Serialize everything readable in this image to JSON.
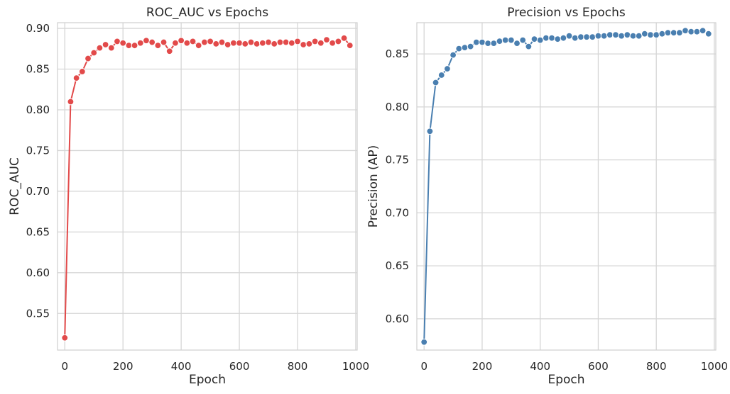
{
  "chart_data": [
    {
      "type": "line",
      "title": "ROC_AUC vs Epochs",
      "xlabel": "Epoch",
      "ylabel": "ROC_AUC",
      "xlim": [
        -25,
        1005
      ],
      "ylim": [
        0.505,
        0.907
      ],
      "xticks": [
        0,
        200,
        400,
        600,
        800,
        1000
      ],
      "xtick_labels": [
        "0",
        "200",
        "400",
        "600",
        "800",
        "1000"
      ],
      "yticks": [
        0.55,
        0.6,
        0.65,
        0.7,
        0.75,
        0.8,
        0.85,
        0.9
      ],
      "ytick_labels": [
        "0.55",
        "0.60",
        "0.65",
        "0.70",
        "0.75",
        "0.80",
        "0.85",
        "0.90"
      ],
      "grid": true,
      "marker": "circle",
      "color": "#e24a4a",
      "x": [
        0,
        20,
        40,
        60,
        80,
        100,
        120,
        140,
        160,
        180,
        200,
        220,
        240,
        260,
        280,
        300,
        320,
        340,
        360,
        380,
        400,
        420,
        440,
        460,
        480,
        500,
        520,
        540,
        560,
        580,
        600,
        620,
        640,
        660,
        680,
        700,
        720,
        740,
        760,
        780,
        800,
        820,
        840,
        860,
        880,
        900,
        920,
        940,
        960,
        980
      ],
      "y": [
        0.52,
        0.81,
        0.839,
        0.847,
        0.863,
        0.87,
        0.876,
        0.88,
        0.876,
        0.884,
        0.882,
        0.879,
        0.879,
        0.882,
        0.885,
        0.883,
        0.879,
        0.883,
        0.872,
        0.882,
        0.885,
        0.882,
        0.884,
        0.879,
        0.883,
        0.884,
        0.881,
        0.883,
        0.88,
        0.882,
        0.882,
        0.881,
        0.883,
        0.881,
        0.882,
        0.883,
        0.881,
        0.883,
        0.883,
        0.882,
        0.884,
        0.88,
        0.881,
        0.884,
        0.882,
        0.886,
        0.882,
        0.884,
        0.888,
        0.879
      ]
    },
    {
      "type": "line",
      "title": "Precision vs Epochs",
      "xlabel": "Epoch",
      "ylabel": "Precision (AP)",
      "xlim": [
        -25,
        1005
      ],
      "ylim": [
        0.5705,
        0.8795
      ],
      "xticks": [
        0,
        200,
        400,
        600,
        800,
        1000
      ],
      "xtick_labels": [
        "0",
        "200",
        "400",
        "600",
        "800",
        "1000"
      ],
      "yticks": [
        0.6,
        0.65,
        0.7,
        0.75,
        0.8,
        0.85
      ],
      "ytick_labels": [
        "0.60",
        "0.65",
        "0.70",
        "0.75",
        "0.80",
        "0.85"
      ],
      "grid": true,
      "marker": "circle",
      "color": "#4a7fb0",
      "x": [
        0,
        20,
        40,
        60,
        80,
        100,
        120,
        140,
        160,
        180,
        200,
        220,
        240,
        260,
        280,
        300,
        320,
        340,
        360,
        380,
        400,
        420,
        440,
        460,
        480,
        500,
        520,
        540,
        560,
        580,
        600,
        620,
        640,
        660,
        680,
        700,
        720,
        740,
        760,
        780,
        800,
        820,
        840,
        860,
        880,
        900,
        920,
        940,
        960,
        980
      ],
      "y": [
        0.578,
        0.777,
        0.823,
        0.83,
        0.836,
        0.849,
        0.855,
        0.856,
        0.857,
        0.861,
        0.861,
        0.86,
        0.86,
        0.862,
        0.863,
        0.863,
        0.86,
        0.863,
        0.857,
        0.864,
        0.863,
        0.865,
        0.865,
        0.864,
        0.865,
        0.867,
        0.865,
        0.866,
        0.866,
        0.866,
        0.867,
        0.867,
        0.868,
        0.868,
        0.867,
        0.868,
        0.867,
        0.867,
        0.869,
        0.868,
        0.868,
        0.869,
        0.87,
        0.87,
        0.87,
        0.872,
        0.871,
        0.871,
        0.872,
        0.869
      ]
    }
  ]
}
